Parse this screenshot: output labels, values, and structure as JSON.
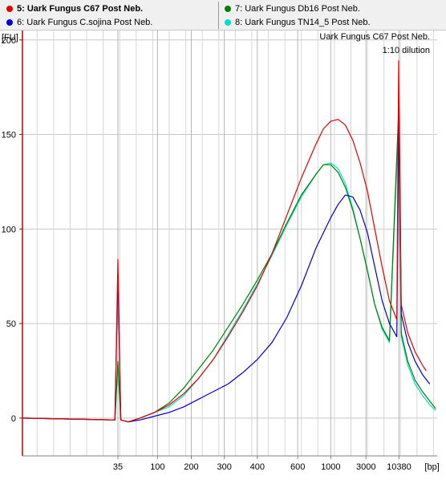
{
  "legend": {
    "items": [
      {
        "label": "5: Uark Fungus C67 Post Neb.",
        "color": "#e00000",
        "selected": true
      },
      {
        "label": "6: Uark Fungus C.sojina Post Neb.",
        "color": "#0000c8",
        "selected": false
      },
      {
        "label": "7: Uark Fungus Db16 Post Neb.",
        "color": "#008000",
        "selected": false
      },
      {
        "label": "8: Uark Fungus TN14_5 Post Neb.",
        "color": "#00e0d0",
        "selected": false
      }
    ]
  },
  "chart_data": {
    "type": "line",
    "title": "Uark Fungus C67 Post Neb.",
    "subtitle": "1:10 dilution",
    "ylabel": "[FU]",
    "xlabel": "[bp]",
    "ylim": [
      -20,
      205
    ],
    "yticks": [
      0,
      50,
      100,
      150,
      200
    ],
    "xticks": [
      {
        "label": "35",
        "time": 35.0
      },
      {
        "label": "100",
        "time": 40.4
      },
      {
        "label": "200",
        "time": 45.0
      },
      {
        "label": "300",
        "time": 49.5
      },
      {
        "label": "400",
        "time": 54.0
      },
      {
        "label": "600",
        "time": 59.5
      },
      {
        "label": "1000",
        "time": 64.0
      },
      {
        "label": "3000",
        "time": 68.8
      },
      {
        "label": "10380",
        "time": 73.3
      },
      {
        "label": "[bp]",
        "time": 77.8
      }
    ],
    "xlim": [
      22.0,
      78.5
    ],
    "grid": true,
    "markers": {
      "lower_time": 35.0,
      "upper_time": 73.3
    },
    "series": [
      {
        "name": "5: Uark Fungus C67 Post Neb.",
        "color": "#e00000",
        "points": [
          [
            22.0,
            0
          ],
          [
            34.6,
            -1
          ],
          [
            35.0,
            84
          ],
          [
            35.4,
            -1
          ],
          [
            36.4,
            -2
          ],
          [
            38.0,
            0
          ],
          [
            40.0,
            3
          ],
          [
            42.0,
            7
          ],
          [
            44.0,
            13
          ],
          [
            46.0,
            21
          ],
          [
            48.0,
            31
          ],
          [
            50.0,
            43
          ],
          [
            52.0,
            56
          ],
          [
            54.0,
            70
          ],
          [
            56.0,
            87
          ],
          [
            58.0,
            107
          ],
          [
            60.0,
            127
          ],
          [
            62.0,
            145
          ],
          [
            63.0,
            153
          ],
          [
            64.0,
            157
          ],
          [
            65.0,
            158
          ],
          [
            66.0,
            155
          ],
          [
            67.0,
            147
          ],
          [
            68.0,
            135
          ],
          [
            69.0,
            120
          ],
          [
            70.0,
            100
          ],
          [
            71.0,
            80
          ],
          [
            72.0,
            62
          ],
          [
            73.0,
            52
          ],
          [
            73.25,
            189
          ],
          [
            73.6,
            60
          ],
          [
            74.5,
            45
          ],
          [
            75.5,
            35
          ],
          [
            76.5,
            28
          ],
          [
            77.0,
            25
          ]
        ]
      },
      {
        "name": "6: Uark Fungus C.sojina Post Neb.",
        "color": "#0000c8",
        "points": [
          [
            22.0,
            0
          ],
          [
            34.6,
            -1
          ],
          [
            35.0,
            76
          ],
          [
            35.4,
            -1
          ],
          [
            36.4,
            -2
          ],
          [
            38.0,
            -1
          ],
          [
            40.0,
            1
          ],
          [
            42.0,
            3
          ],
          [
            44.0,
            6
          ],
          [
            46.0,
            10
          ],
          [
            48.0,
            14
          ],
          [
            50.0,
            18
          ],
          [
            52.0,
            24
          ],
          [
            54.0,
            31
          ],
          [
            56.0,
            40
          ],
          [
            58.0,
            53
          ],
          [
            60.0,
            70
          ],
          [
            62.0,
            90
          ],
          [
            64.0,
            106
          ],
          [
            65.0,
            113
          ],
          [
            66.0,
            118
          ],
          [
            67.0,
            117
          ],
          [
            68.0,
            110
          ],
          [
            69.0,
            98
          ],
          [
            70.0,
            80
          ],
          [
            71.0,
            62
          ],
          [
            72.0,
            50
          ],
          [
            73.0,
            43
          ],
          [
            73.3,
            165
          ],
          [
            73.6,
            55
          ],
          [
            74.5,
            40
          ],
          [
            75.5,
            30
          ],
          [
            76.5,
            23
          ],
          [
            77.5,
            18
          ]
        ]
      },
      {
        "name": "7: Uark Fungus Db16 Post Neb.",
        "color": "#008000",
        "points": [
          [
            22.0,
            0
          ],
          [
            34.6,
            -1
          ],
          [
            35.0,
            30
          ],
          [
            35.4,
            -1
          ],
          [
            36.4,
            -2
          ],
          [
            38.0,
            0
          ],
          [
            40.0,
            3
          ],
          [
            42.0,
            8
          ],
          [
            44.0,
            16
          ],
          [
            46.0,
            26
          ],
          [
            48.0,
            36
          ],
          [
            50.0,
            48
          ],
          [
            52.0,
            60
          ],
          [
            54.0,
            73
          ],
          [
            56.0,
            87
          ],
          [
            58.0,
            103
          ],
          [
            60.0,
            118
          ],
          [
            62.0,
            129
          ],
          [
            63.0,
            134
          ],
          [
            64.0,
            134
          ],
          [
            65.0,
            130
          ],
          [
            66.0,
            122
          ],
          [
            67.0,
            110
          ],
          [
            68.0,
            95
          ],
          [
            69.0,
            78
          ],
          [
            70.0,
            60
          ],
          [
            71.0,
            48
          ],
          [
            72.0,
            41
          ],
          [
            73.25,
            163
          ],
          [
            73.6,
            45
          ],
          [
            74.5,
            30
          ],
          [
            75.5,
            20
          ],
          [
            76.5,
            14
          ],
          [
            77.5,
            9
          ],
          [
            78.3,
            5
          ]
        ]
      },
      {
        "name": "8: Uark Fungus TN14_5 Post Neb.",
        "color": "#00e0d0",
        "points": [
          [
            22.0,
            0
          ],
          [
            34.6,
            -1
          ],
          [
            35.0,
            28
          ],
          [
            35.4,
            -1
          ],
          [
            36.4,
            -2
          ],
          [
            38.0,
            0
          ],
          [
            40.0,
            3
          ],
          [
            42.0,
            6
          ],
          [
            44.0,
            12
          ],
          [
            46.0,
            21
          ],
          [
            48.0,
            31
          ],
          [
            50.0,
            44
          ],
          [
            52.0,
            57
          ],
          [
            54.0,
            71
          ],
          [
            56.0,
            86
          ],
          [
            58.0,
            102
          ],
          [
            60.0,
            117
          ],
          [
            62.0,
            129
          ],
          [
            63.0,
            134
          ],
          [
            64.0,
            135
          ],
          [
            65.0,
            132
          ],
          [
            66.0,
            124
          ],
          [
            67.0,
            111
          ],
          [
            68.0,
            95
          ],
          [
            69.0,
            78
          ],
          [
            70.0,
            60
          ],
          [
            71.0,
            47
          ],
          [
            72.0,
            40
          ],
          [
            73.3,
            160
          ],
          [
            73.6,
            43
          ],
          [
            74.5,
            28
          ],
          [
            75.5,
            18
          ],
          [
            76.5,
            12
          ],
          [
            77.5,
            7
          ],
          [
            78.3,
            4
          ]
        ]
      }
    ]
  }
}
